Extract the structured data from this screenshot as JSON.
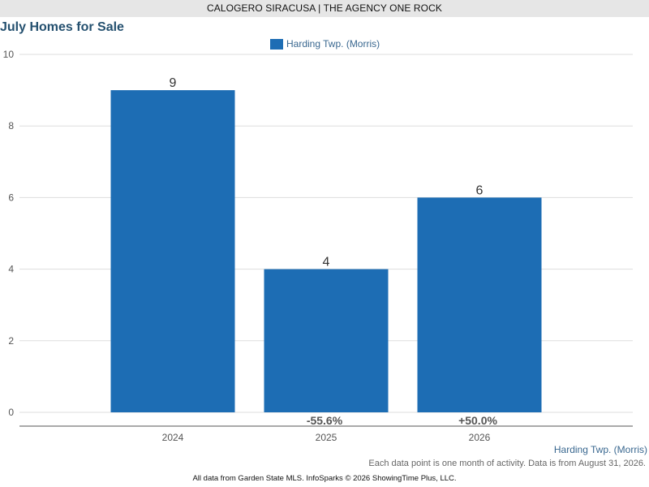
{
  "header": {
    "banner": "CALOGERO SIRACUSA | THE AGENCY ONE ROCK"
  },
  "chart_data": {
    "type": "bar",
    "title": "July Homes for Sale",
    "categories": [
      "2024",
      "2025",
      "2026"
    ],
    "series": [
      {
        "name": "Harding Twp. (Morris)",
        "values": [
          9,
          4,
          6
        ],
        "color": "#1d6db4"
      }
    ],
    "value_labels": [
      "9",
      "4",
      "6"
    ],
    "change_labels": [
      "",
      "-55.6%",
      "+50.0%"
    ],
    "yticks": [
      0,
      2,
      4,
      6,
      8,
      10
    ],
    "ylim": [
      0,
      10
    ],
    "grid": true,
    "legend_position": "top"
  },
  "notes": {
    "series_label": "Harding Twp. (Morris)",
    "footnote": "Each data point is one month of activity. Data is from August 31, 2026.",
    "source": "All data from Garden State MLS. InfoSparks © 2026 ShowingTime Plus, LLC."
  }
}
